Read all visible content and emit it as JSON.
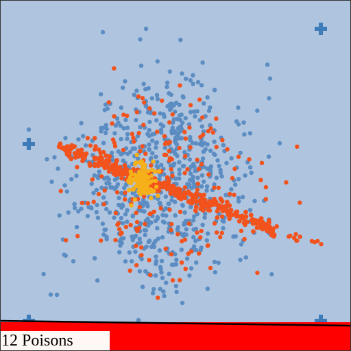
{
  "hud": {
    "poison_count_text": "12 Poisons"
  },
  "colors": {
    "background": "#aec4df",
    "blue_particle": "#5b8cc2",
    "red_particle": "#f2521c",
    "gold_particle": "#f5b01a",
    "cross_marker": "#3d7cb8",
    "danger_zone": "#ff0000",
    "label_background": "#fff8f4"
  },
  "icons": {
    "markers": "plus-cross-icon"
  }
}
